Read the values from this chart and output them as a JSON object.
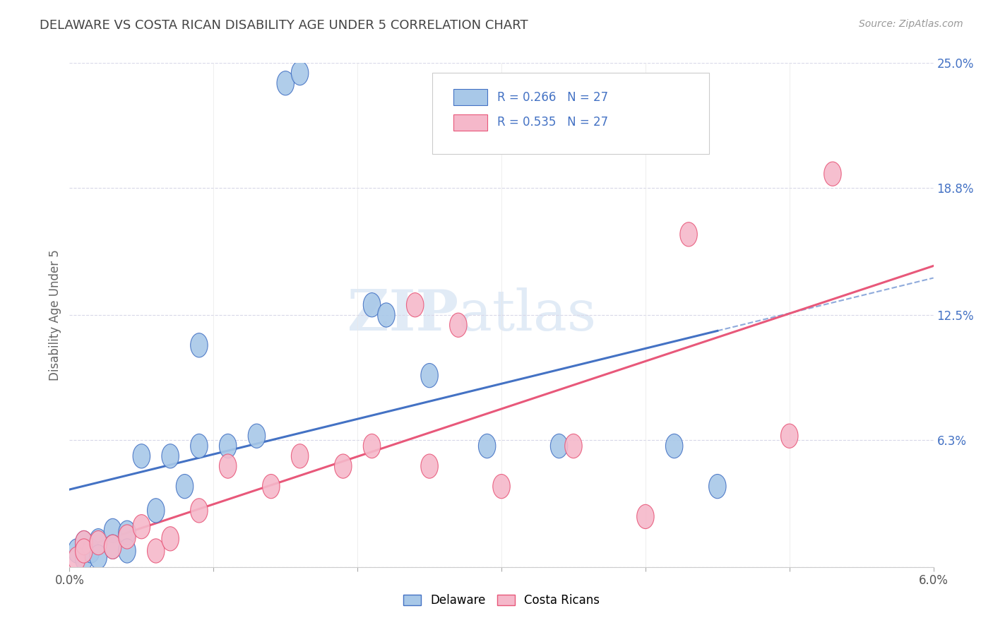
{
  "title": "DELAWARE VS COSTA RICAN DISABILITY AGE UNDER 5 CORRELATION CHART",
  "source": "Source: ZipAtlas.com",
  "ylabel": "Disability Age Under 5",
  "xlim": [
    0.0,
    0.06
  ],
  "ylim": [
    0.0,
    0.25
  ],
  "xtick_values": [
    0.0,
    0.01,
    0.02,
    0.03,
    0.04,
    0.05,
    0.06
  ],
  "xticklabels": [
    "0.0%",
    "",
    "",
    "",
    "",
    "",
    "6.0%"
  ],
  "ytick_right_labels": [
    "25.0%",
    "18.8%",
    "12.5%",
    "6.3%",
    ""
  ],
  "ytick_right_values": [
    0.25,
    0.188,
    0.125,
    0.063,
    0.0
  ],
  "delaware_color": "#a8c8e8",
  "costa_rican_color": "#f5b8ca",
  "delaware_line_color": "#4472c4",
  "costa_rican_line_color": "#e8587a",
  "delaware_scatter_x": [
    0.0005,
    0.001,
    0.001,
    0.0015,
    0.002,
    0.002,
    0.003,
    0.003,
    0.004,
    0.004,
    0.005,
    0.006,
    0.007,
    0.008,
    0.009,
    0.009,
    0.011,
    0.013,
    0.015,
    0.016,
    0.021,
    0.022,
    0.025,
    0.029,
    0.034,
    0.042,
    0.045
  ],
  "delaware_scatter_y": [
    0.008,
    0.004,
    0.012,
    0.008,
    0.013,
    0.005,
    0.018,
    0.01,
    0.017,
    0.008,
    0.055,
    0.028,
    0.055,
    0.04,
    0.11,
    0.06,
    0.06,
    0.065,
    0.24,
    0.245,
    0.13,
    0.125,
    0.095,
    0.06,
    0.06,
    0.06,
    0.04
  ],
  "costa_rican_scatter_x": [
    0.0005,
    0.001,
    0.001,
    0.002,
    0.003,
    0.004,
    0.005,
    0.006,
    0.007,
    0.009,
    0.011,
    0.014,
    0.016,
    0.019,
    0.021,
    0.024,
    0.025,
    0.027,
    0.03,
    0.035,
    0.04,
    0.043,
    0.05,
    0.053
  ],
  "costa_rican_scatter_y": [
    0.004,
    0.012,
    0.008,
    0.012,
    0.01,
    0.015,
    0.02,
    0.008,
    0.014,
    0.028,
    0.05,
    0.04,
    0.055,
    0.05,
    0.06,
    0.13,
    0.05,
    0.12,
    0.04,
    0.06,
    0.025,
    0.165,
    0.065,
    0.195
  ],
  "watermark_zip": "ZIP",
  "watermark_atlas": "atlas",
  "background_color": "#ffffff",
  "grid_color": "#d8d8e8",
  "legend_text_color": "#4472c4",
  "title_color": "#444444",
  "axis_label_color": "#666666"
}
